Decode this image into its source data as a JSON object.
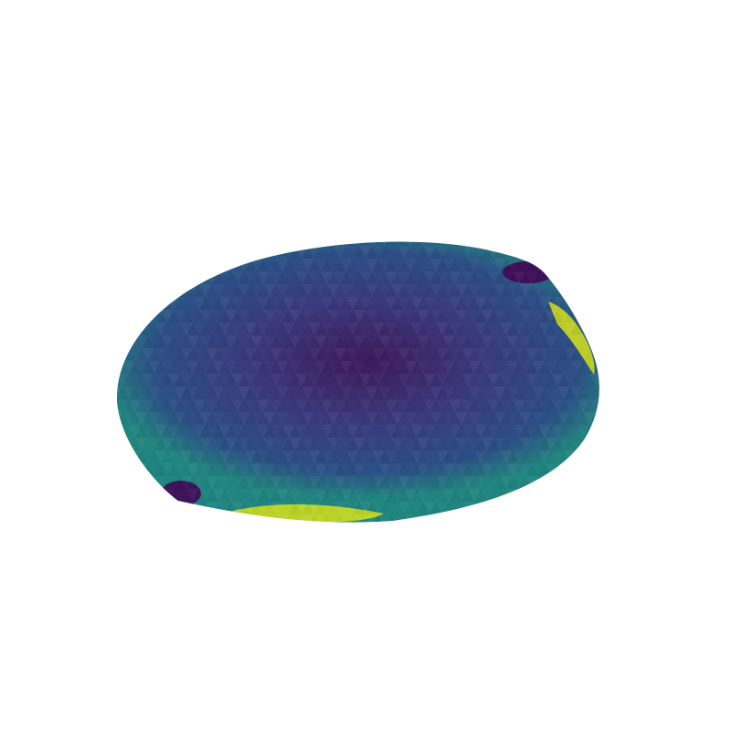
{
  "scene": {
    "background_color": "#ffffff",
    "colormap": "viridis",
    "colormap_stops": [
      "#440154",
      "#3b2a78",
      "#355f8d",
      "#21918c",
      "#35b779",
      "#90d743",
      "#fde725"
    ],
    "surface": {
      "mesh": "triangulated",
      "center_color": "#3f1a5c",
      "mid_color": "#2c4f86",
      "edge_color": "#21857f",
      "dark_corner_color": "#440154",
      "hot_edge_color": "#d7e219"
    }
  }
}
